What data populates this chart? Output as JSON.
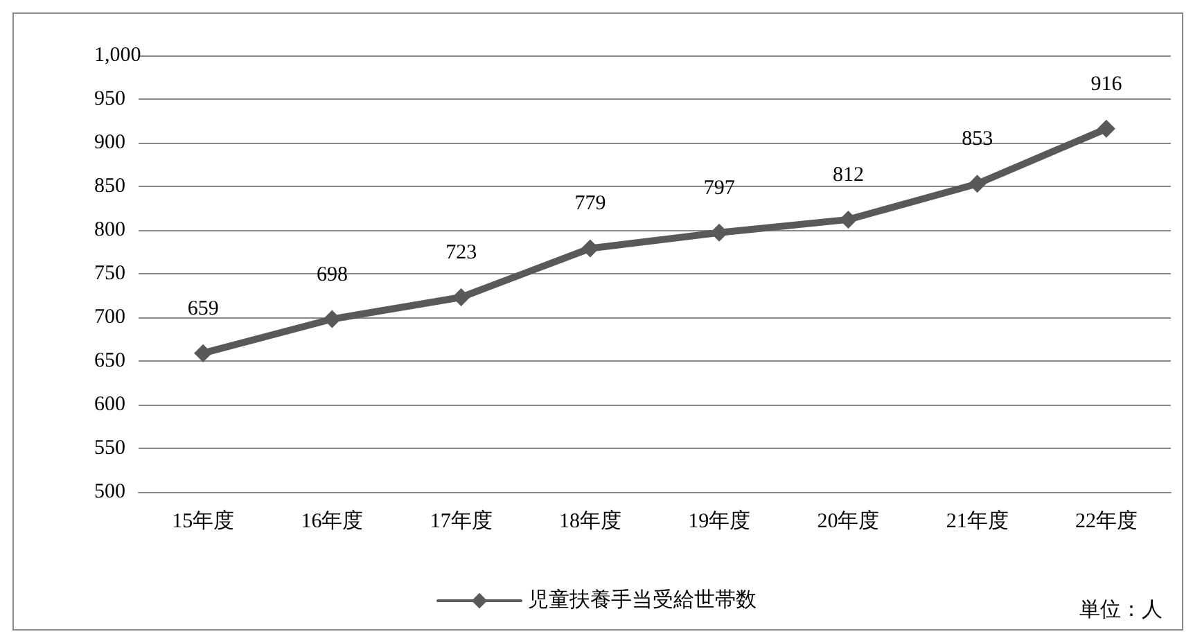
{
  "chart_data": {
    "type": "line",
    "categories": [
      "15年度",
      "16年度",
      "17年度",
      "18年度",
      "19年度",
      "20年度",
      "21年度",
      "22年度"
    ],
    "series": [
      {
        "name": "児童扶養手当受給世帯数",
        "color": "#595959",
        "values": [
          659,
          698,
          723,
          779,
          797,
          812,
          853,
          916
        ]
      }
    ],
    "ylim": [
      500,
      1000
    ],
    "yticks": [
      500,
      550,
      600,
      650,
      700,
      750,
      800,
      850,
      900,
      950,
      {
        "value": 1000,
        "label": "1,000"
      }
    ],
    "grid": "y",
    "legend": "bottom",
    "marker": "diamond",
    "data_labels": true,
    "line_style": "solid",
    "annotations": [
      "単位：人"
    ]
  }
}
